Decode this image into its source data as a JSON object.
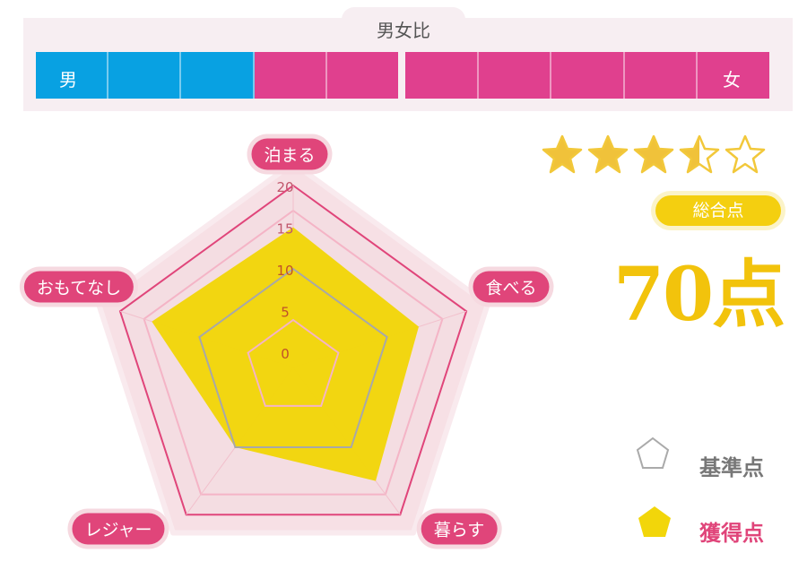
{
  "gender_ratio": {
    "title": "男女比",
    "male_label": "男",
    "female_label": "女",
    "male_segments": 3,
    "total_segments": 10,
    "male_color": "#08a1e2",
    "female_color": "#e0408e"
  },
  "rating": {
    "stars": 3.5,
    "max_stars": 5,
    "total_label": "総合点",
    "score_text": "70点"
  },
  "legend": {
    "base_label": "基準点",
    "earned_label": "獲得点"
  },
  "chart_data": {
    "type": "radar",
    "axes": [
      "泊まる",
      "食べる",
      "暮らす",
      "レジャー",
      "おもてなし"
    ],
    "ticks": [
      "0",
      "5",
      "10",
      "15",
      "20"
    ],
    "range": [
      0,
      20
    ],
    "series": [
      {
        "name": "基準点",
        "values": [
          10,
          10,
          10,
          10,
          10
        ],
        "color": "#a8a8a8"
      },
      {
        "name": "獲得点",
        "values": [
          15,
          14,
          15,
          10,
          16
        ],
        "color": "#f2d60a"
      }
    ]
  }
}
